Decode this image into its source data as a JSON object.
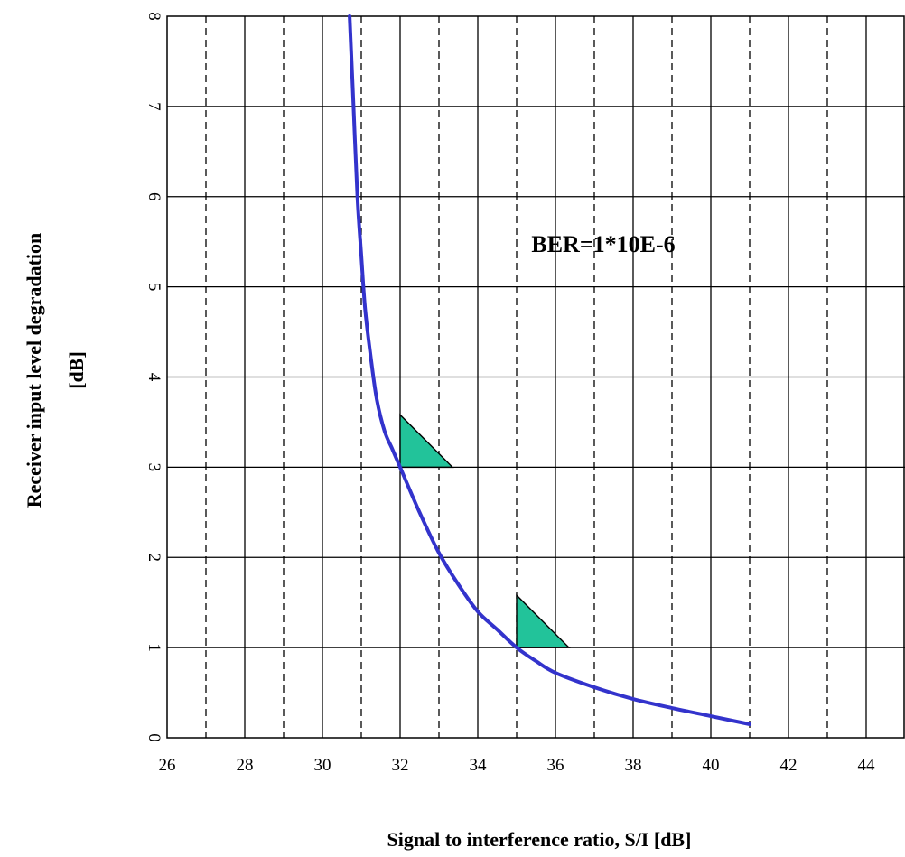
{
  "chart_data": {
    "type": "line",
    "title": "",
    "xlabel": "Signal to interference ratio, S/I [dB]",
    "ylabel": "Receiver input level degradation",
    "ylabel_unit": "[dB]",
    "xlim": [
      26,
      45
    ],
    "ylim": [
      0,
      8
    ],
    "x_ticks": [
      "26",
      "28",
      "30",
      "32",
      "34",
      "36",
      "38",
      "40",
      "42",
      "44"
    ],
    "y_ticks": [
      "0",
      "1",
      "2",
      "3",
      "4",
      "5",
      "6",
      "7",
      "8"
    ],
    "grid": true,
    "annotation": "BER=1*10E-6",
    "series": [
      {
        "color": "#3333cc",
        "x": [
          30.7,
          30.8,
          30.9,
          31.0,
          31.1,
          31.25,
          31.4,
          31.6,
          31.8,
          32.0,
          32.5,
          33.0,
          33.5,
          34.0,
          34.5,
          35.0,
          35.5,
          36.0,
          37.0,
          38.0,
          39.0,
          40.0,
          41.0
        ],
        "y": [
          8.0,
          7.0,
          6.0,
          5.35,
          4.75,
          4.2,
          3.75,
          3.4,
          3.2,
          3.0,
          2.5,
          2.05,
          1.7,
          1.4,
          1.2,
          1.0,
          0.85,
          0.72,
          0.56,
          0.43,
          0.33,
          0.24,
          0.15
        ]
      }
    ],
    "markers": [
      {
        "x": 32,
        "y": 3,
        "color": "#22c39a"
      },
      {
        "x": 35,
        "y": 1,
        "color": "#22c39a"
      }
    ]
  }
}
